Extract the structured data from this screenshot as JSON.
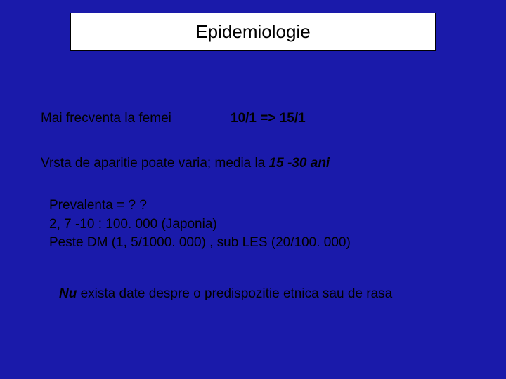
{
  "colors": {
    "background": "#1a1aaa",
    "box_background": "#ffffff",
    "box_border": "#000000",
    "text": "#000000"
  },
  "title": "Epidemiologie",
  "line1": {
    "text": "Mai frecventa la femei",
    "ratio": "10/1    =>   15/1"
  },
  "line2": {
    "prefix": "Vrsta de aparitie poate varia;  media la ",
    "italic": "15 -30  ani"
  },
  "block3": {
    "l1": "Prevalenta = ? ?",
    "l2": "2, 7 -10 : 100. 000 (Japonia)",
    "l3": "Peste DM (1, 5/1000. 000) , sub LES (20/100. 000)"
  },
  "line4": {
    "bold": "Nu",
    "rest": " exista date despre o predispozitie etnica sau de rasa"
  },
  "typography": {
    "title_fontsize": 26,
    "body_fontsize": 19,
    "font_family": "Arial"
  }
}
